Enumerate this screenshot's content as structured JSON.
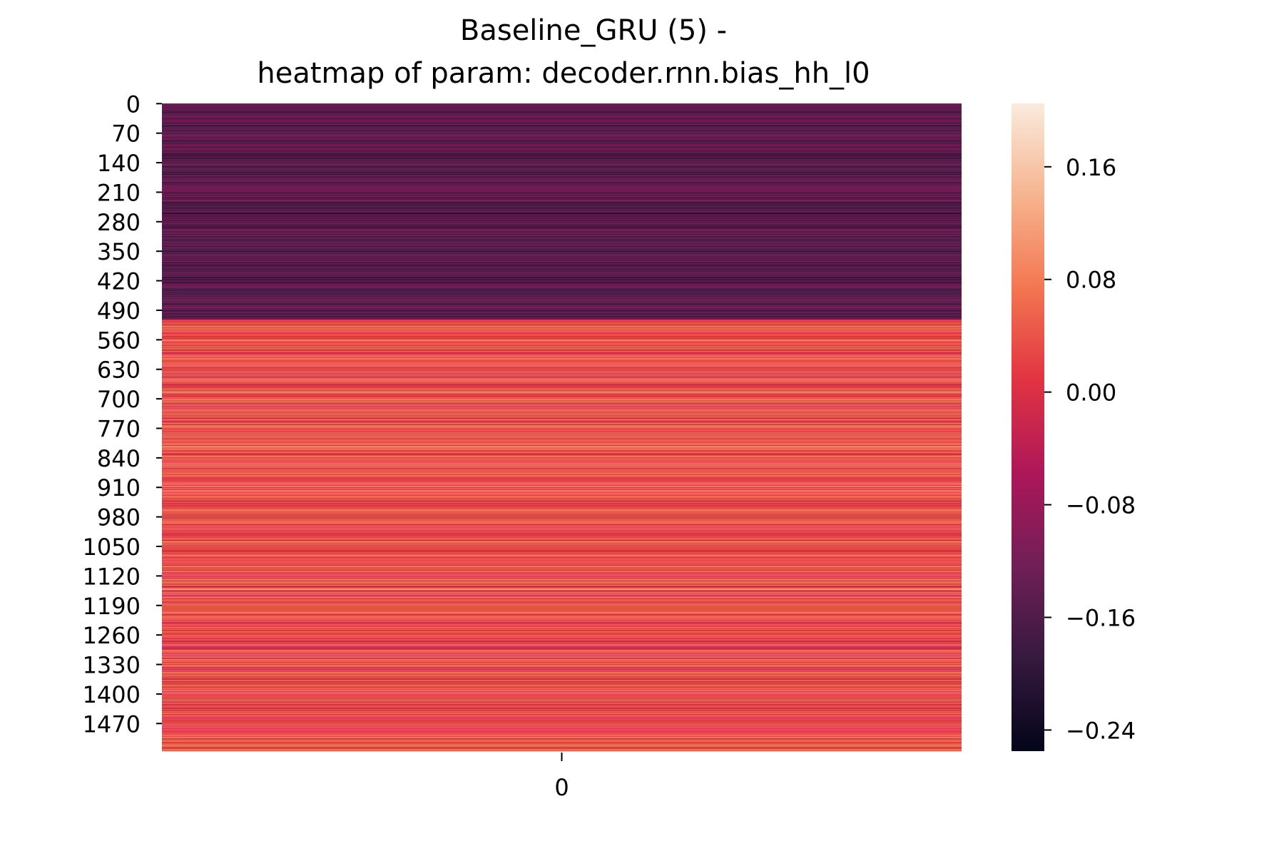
{
  "chart_data": {
    "type": "heatmap",
    "title_lines": [
      "Baseline_GRU (5) -",
      "heatmap of param: decoder.rnn.bias_hh_l0"
    ],
    "xlabel": "",
    "ylabel": "",
    "x_tick_labels": [
      "0"
    ],
    "y_tick_labels": [
      "0",
      "70",
      "140",
      "210",
      "280",
      "350",
      "420",
      "490",
      "560",
      "630",
      "700",
      "770",
      "840",
      "910",
      "980",
      "1050",
      "1120",
      "1190",
      "1260",
      "1330",
      "1400",
      "1470"
    ],
    "y_tick_values": [
      0,
      70,
      140,
      210,
      280,
      350,
      420,
      490,
      560,
      630,
      700,
      770,
      840,
      910,
      980,
      1050,
      1120,
      1190,
      1260,
      1330,
      1400,
      1470
    ],
    "rows": 1536,
    "columns": 1,
    "colormap": "rocket",
    "colorbar": {
      "vmin": -0.255,
      "vmax": 0.205,
      "ticks": [
        0.16,
        0.08,
        0.0,
        -0.08,
        -0.16,
        -0.24
      ],
      "tick_labels": [
        "0.16",
        "0.08",
        "0.00",
        "−0.08",
        "−0.16",
        "−0.24"
      ]
    },
    "segments": [
      {
        "row_start": 0,
        "row_end": 512,
        "mean": -0.15,
        "spread": 0.05
      },
      {
        "row_start": 512,
        "row_end": 1536,
        "mean": 0.035,
        "spread": 0.06
      }
    ],
    "colors": {
      "rocket_stops": [
        "#03051a",
        "#36193e",
        "#701f57",
        "#ad1759",
        "#e13342",
        "#f37651",
        "#f6b48f",
        "#faebdd"
      ]
    }
  }
}
